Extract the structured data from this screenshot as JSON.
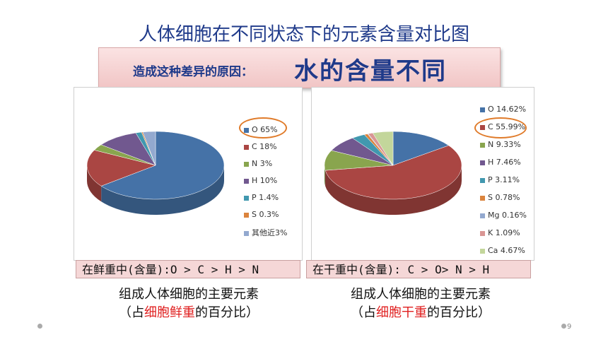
{
  "title": "人体细胞在不同状态下的元素含量对比图",
  "banner": {
    "label": "造成这种差异的原因：",
    "answer": "水的含量不同"
  },
  "chart_data": [
    {
      "type": "pie",
      "title": "",
      "categories": [
        "O",
        "C",
        "N",
        "H",
        "P",
        "S",
        "其他近"
      ],
      "values": [
        65,
        18,
        3,
        10,
        1.4,
        0.3,
        3
      ],
      "legend": [
        "O 65%",
        "C 18%",
        "N 3%",
        "H 10%",
        "P 1.4%",
        "S 0.3%",
        "其他近3%"
      ],
      "colors": [
        "#4572a7",
        "#aa4643",
        "#89a54e",
        "#71588f",
        "#4198af",
        "#db843d",
        "#93a9cf"
      ],
      "legend_position": "right",
      "highlight": "O 65%"
    },
    {
      "type": "pie",
      "title": "",
      "categories": [
        "O",
        "C",
        "N",
        "H",
        "P",
        "S",
        "Mg",
        "K",
        "Ca"
      ],
      "values": [
        14.62,
        55.99,
        9.33,
        7.46,
        3.11,
        0.78,
        0.16,
        1.09,
        4.67
      ],
      "legend": [
        "O 14.62%",
        "C 55.99%",
        "N 9.33%",
        "H 7.46%",
        "P 3.11%",
        "S 0.78%",
        "Mg 0.16%",
        "K 1.09%",
        "Ca 4.67%"
      ],
      "colors": [
        "#4572a7",
        "#aa4643",
        "#89a54e",
        "#71588f",
        "#4198af",
        "#db843d",
        "#93a9cf",
        "#d99694",
        "#c3d69b"
      ],
      "legend_position": "right",
      "highlight": "C 55.99%"
    }
  ],
  "bars": {
    "left": "在鲜重中(含量):O > C > H > N",
    "right": "在干重中(含量): C > O> N > H"
  },
  "captions": {
    "left": {
      "line1": "组成人体细胞的主要元素",
      "pre": "（占",
      "em": "细胞鲜重",
      "post": "的百分比）"
    },
    "right": {
      "line1": "组成人体细胞的主要元素",
      "pre": "（占",
      "em": "细胞干重",
      "post": "的百分比）"
    }
  },
  "slide_number": "9"
}
